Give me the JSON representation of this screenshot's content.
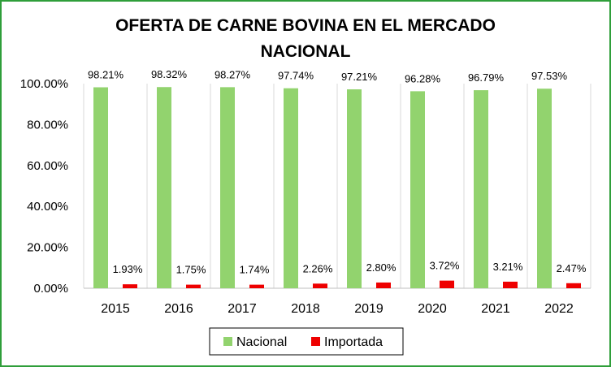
{
  "chart_data": {
    "type": "bar",
    "title_lines": [
      "OFERTA DE CARNE BOVINA EN EL MERCADO",
      "NACIONAL"
    ],
    "categories": [
      "2015",
      "2016",
      "2017",
      "2018",
      "2019",
      "2020",
      "2021",
      "2022"
    ],
    "series": [
      {
        "name": "Nacional",
        "color": "#92d36e",
        "values": [
          98.21,
          98.32,
          98.27,
          97.74,
          97.21,
          96.28,
          96.79,
          97.53
        ],
        "labels": [
          "98.21%",
          "98.32%",
          "98.27%",
          "97.74%",
          "97.21%",
          "96.28%",
          "96.79%",
          "97.53%"
        ]
      },
      {
        "name": "Importada",
        "color": "#ee0000",
        "values": [
          1.93,
          1.75,
          1.74,
          2.26,
          2.8,
          3.72,
          3.21,
          2.47
        ],
        "labels": [
          "1.93%",
          "1.75%",
          "1.74%",
          "2.26%",
          "2.80%",
          "3.72%",
          "3.21%",
          "2.47%"
        ]
      }
    ],
    "ylim": [
      0,
      100
    ],
    "yticks": [
      0,
      20,
      40,
      60,
      80,
      100
    ],
    "ytick_labels": [
      "0.00%",
      "20.00%",
      "40.00%",
      "60.00%",
      "80.00%",
      "100.00%"
    ],
    "grid": "vertical-category-dividers",
    "legend_position": "bottom",
    "border_color": "#2f9e3a"
  }
}
